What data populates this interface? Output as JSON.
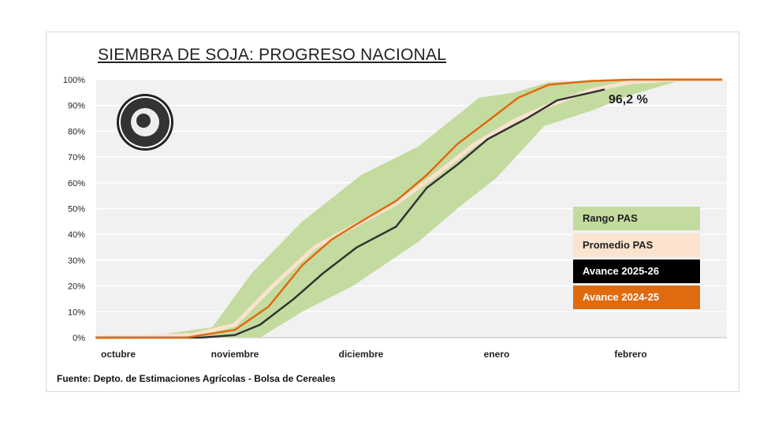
{
  "chart_data": {
    "type": "area",
    "title": "SIEMBRA DE SOJA: PROGRESO NACIONAL",
    "source": "Fuente: Depto. de Estimaciones Agrícolas - Bolsa de Cereales",
    "logo_text": "Bolsa de Cereales",
    "x_tick_labels": [
      "octubre",
      "noviembre",
      "diciembre",
      "enero",
      "febrero"
    ],
    "y_tick_labels": [
      "0%",
      "10%",
      "20%",
      "30%",
      "40%",
      "50%",
      "60%",
      "70%",
      "80%",
      "90%",
      "100%"
    ],
    "ylim": [
      0,
      100
    ],
    "grid": true,
    "legend_position": "right",
    "annotation": "96,2 %",
    "colors": {
      "range": "#c4dba0",
      "average": "#fbe3cf",
      "current": "#333333",
      "previous": "#e06a10"
    },
    "range": {
      "name": "Rango PAS",
      "lower": [
        [
          "10-09",
          0
        ],
        [
          "11-21",
          0
        ],
        [
          "12-01",
          10
        ],
        [
          "12-13",
          20
        ],
        [
          "12-28",
          37
        ],
        [
          "01-06",
          50
        ],
        [
          "01-15",
          62
        ],
        [
          "01-26",
          82
        ],
        [
          "02-06",
          88
        ],
        [
          "02-15",
          94
        ],
        [
          "02-27",
          100
        ],
        [
          "03-08",
          100
        ]
      ],
      "upper": [
        [
          "10-09",
          0
        ],
        [
          "10-25",
          1
        ],
        [
          "11-09",
          4
        ],
        [
          "11-19",
          25
        ],
        [
          "12-01",
          45
        ],
        [
          "12-15",
          63
        ],
        [
          "12-28",
          74
        ],
        [
          "01-11",
          93
        ],
        [
          "01-19",
          95
        ],
        [
          "01-27",
          99
        ],
        [
          "02-11",
          100
        ],
        [
          "03-08",
          100
        ]
      ]
    },
    "series": [
      {
        "name": "Promedio PAS",
        "points": [
          [
            "10-09",
            0
          ],
          [
            "11-04",
            1
          ],
          [
            "11-15",
            5
          ],
          [
            "11-24",
            20
          ],
          [
            "12-04",
            35
          ],
          [
            "12-13",
            43
          ],
          [
            "12-23",
            52
          ],
          [
            "01-01",
            63
          ],
          [
            "01-10",
            75
          ],
          [
            "01-19",
            84
          ],
          [
            "01-27",
            90
          ],
          [
            "02-06",
            96
          ],
          [
            "02-15",
            99
          ],
          [
            "02-24",
            100
          ],
          [
            "03-08",
            100
          ]
        ]
      },
      {
        "name": "Avance 2025-26",
        "points": [
          [
            "10-09",
            0
          ],
          [
            "11-06",
            0
          ],
          [
            "11-15",
            1
          ],
          [
            "11-21",
            5
          ],
          [
            "11-29",
            15
          ],
          [
            "12-06",
            25
          ],
          [
            "12-14",
            35
          ],
          [
            "12-23",
            43
          ],
          [
            "12-30",
            58
          ],
          [
            "01-06",
            67
          ],
          [
            "01-13",
            77
          ],
          [
            "01-22",
            85
          ],
          [
            "01-29",
            92
          ],
          [
            "02-09",
            96.2
          ]
        ]
      },
      {
        "name": "Avance 2024-25",
        "points": [
          [
            "10-09",
            0
          ],
          [
            "11-02",
            0
          ],
          [
            "11-15",
            3
          ],
          [
            "11-23",
            12
          ],
          [
            "12-01",
            28
          ],
          [
            "12-08",
            38
          ],
          [
            "12-15",
            45
          ],
          [
            "12-23",
            53
          ],
          [
            "12-30",
            63
          ],
          [
            "01-06",
            75
          ],
          [
            "01-13",
            84
          ],
          [
            "01-20",
            93
          ],
          [
            "01-27",
            98
          ],
          [
            "02-06",
            99.5
          ],
          [
            "02-15",
            100
          ],
          [
            "03-08",
            100
          ]
        ]
      }
    ]
  }
}
